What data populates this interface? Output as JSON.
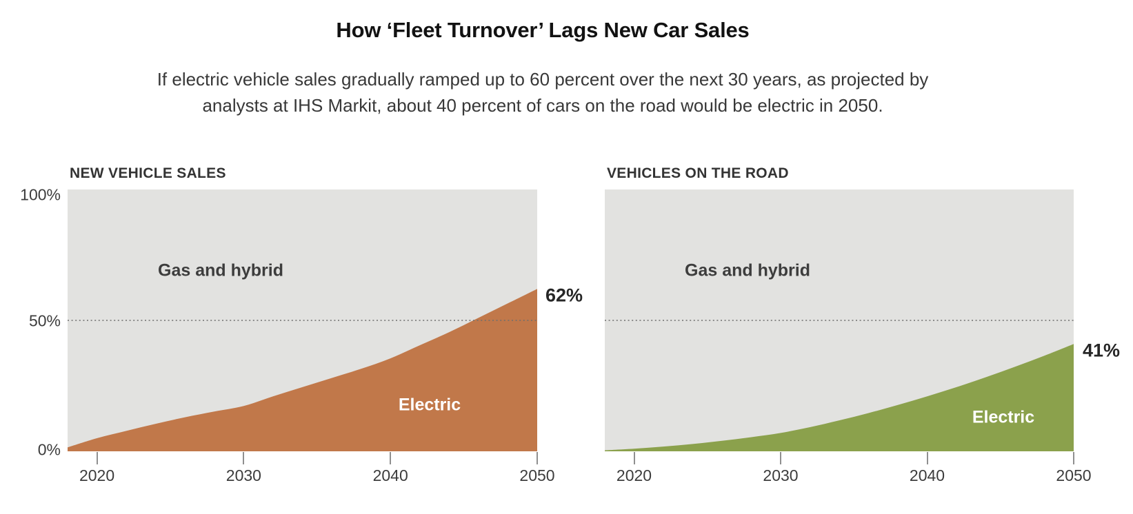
{
  "header": {
    "title": "How ‘Fleet Turnover’ Lags New Car Sales",
    "subtitle": [
      "If electric vehicle sales gradually ramped up to 60 percent over the next 30 years, as projected by",
      "analysts at IHS Markit, about 40 percent of cars on the road would be electric in 2050."
    ]
  },
  "colors": {
    "sales_area": "#c1784a",
    "fleet_area": "#8ba14c",
    "plot_background": "#e2e2e0",
    "gridline": "#6e6e6e",
    "tick": "#8f8f8f"
  },
  "chart_data": [
    {
      "type": "area",
      "title": "NEW VEHICLE SALES",
      "x": [
        2018,
        2020,
        2022,
        2024,
        2026,
        2028,
        2030,
        2032,
        2034,
        2036,
        2038,
        2040,
        2042,
        2044,
        2046,
        2048,
        2050
      ],
      "series": [
        {
          "name": "Electric",
          "values": [
            1.5,
            5,
            7.8,
            10.5,
            13,
            15.2,
            17.3,
            21,
            24.5,
            28,
            31.5,
            35.5,
            40.5,
            45.5,
            51,
            56.5,
            62
          ]
        }
      ],
      "area_label": "Electric",
      "background_label": "Gas and hybrid",
      "end_label": "62%",
      "end_value": 62,
      "xlim": [
        2018,
        2050
      ],
      "ylim": [
        0,
        100
      ],
      "x_ticks": [
        "2020",
        "2030",
        "2040",
        "2050"
      ],
      "x_tick_years": [
        2020,
        2030,
        2040,
        2050
      ],
      "y_ticks": [
        "100%",
        "50%",
        "0%"
      ],
      "y_tick_values": [
        100,
        50,
        0
      ],
      "gridline_value": 50,
      "fill_color": "#c1784a",
      "bg_color": "#e2e2e0",
      "legend_position": "in-plot labels"
    },
    {
      "type": "area",
      "title": "VEHICLES ON THE ROAD",
      "x": [
        2018,
        2020,
        2022,
        2024,
        2026,
        2028,
        2030,
        2032,
        2034,
        2036,
        2038,
        2040,
        2042,
        2044,
        2046,
        2048,
        2050
      ],
      "series": [
        {
          "name": "Electric",
          "values": [
            0.4,
            1,
            1.8,
            2.8,
            4,
            5.4,
            7,
            9.2,
            11.8,
            14.6,
            17.7,
            21,
            24.5,
            28.3,
            32.3,
            36.5,
            41
          ]
        }
      ],
      "area_label": "Electric",
      "background_label": "Gas and hybrid",
      "end_label": "41%",
      "end_value": 41,
      "xlim": [
        2018,
        2050
      ],
      "ylim": [
        0,
        100
      ],
      "x_ticks": [
        "2020",
        "2030",
        "2040",
        "2050"
      ],
      "x_tick_years": [
        2020,
        2030,
        2040,
        2050
      ],
      "y_ticks": [],
      "y_tick_values": [],
      "gridline_value": 50,
      "fill_color": "#8ba14c",
      "bg_color": "#e2e2e0",
      "legend_position": "in-plot labels"
    }
  ]
}
